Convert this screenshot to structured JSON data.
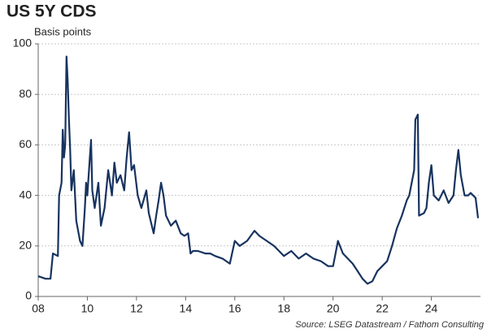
{
  "chart_data": {
    "type": "line",
    "title": "US 5Y CDS",
    "subtitle": "Basis points",
    "source": "Source: LSEG Datastream / Fathom Consulting",
    "xlim": [
      8,
      26
    ],
    "xticks": [
      {
        "value": 8,
        "label": "08"
      },
      {
        "value": 10,
        "label": "10"
      },
      {
        "value": 12,
        "label": "12"
      },
      {
        "value": 14,
        "label": "14"
      },
      {
        "value": 16,
        "label": "16"
      },
      {
        "value": 18,
        "label": "18"
      },
      {
        "value": 20,
        "label": "20"
      },
      {
        "value": 22,
        "label": "22"
      },
      {
        "value": 24,
        "label": "24"
      }
    ],
    "ylim": [
      0,
      100
    ],
    "yticks": [
      0,
      20,
      40,
      60,
      80,
      100
    ],
    "grid": true,
    "x": [
      8.0,
      8.3,
      8.5,
      8.6,
      8.8,
      8.85,
      8.95,
      9.0,
      9.05,
      9.1,
      9.15,
      9.2,
      9.25,
      9.3,
      9.35,
      9.45,
      9.55,
      9.7,
      9.8,
      9.9,
      9.95,
      10.0,
      10.1,
      10.15,
      10.2,
      10.3,
      10.45,
      10.55,
      10.7,
      10.85,
      11.0,
      11.1,
      11.2,
      11.35,
      11.5,
      11.6,
      11.7,
      11.8,
      11.9,
      12.05,
      12.2,
      12.4,
      12.5,
      12.7,
      12.8,
      12.9,
      13.0,
      13.1,
      13.2,
      13.4,
      13.6,
      13.8,
      13.95,
      14.1,
      14.2,
      14.3,
      14.5,
      14.8,
      15.0,
      15.2,
      15.5,
      15.8,
      16.0,
      16.2,
      16.5,
      16.8,
      17.0,
      17.3,
      17.6,
      17.8,
      18.0,
      18.3,
      18.6,
      18.9,
      19.2,
      19.5,
      19.8,
      20.0,
      20.2,
      20.4,
      20.6,
      20.8,
      21.0,
      21.2,
      21.4,
      21.6,
      21.8,
      22.0,
      22.2,
      22.4,
      22.6,
      22.8,
      23.0,
      23.1,
      23.2,
      23.3,
      23.35,
      23.45,
      23.5,
      23.7,
      23.8,
      23.9,
      24.0,
      24.1,
      24.3,
      24.5,
      24.7,
      24.9,
      25.0,
      25.1,
      25.2,
      25.35,
      25.5,
      25.6,
      25.8,
      25.9
    ],
    "series": [
      {
        "name": "US 5Y CDS",
        "color": "#17335f",
        "values": [
          8,
          7,
          7,
          17,
          16,
          40,
          45,
          66,
          55,
          60,
          95,
          85,
          70,
          58,
          42,
          50,
          30,
          22,
          20,
          35,
          45,
          40,
          55,
          62,
          42,
          35,
          45,
          28,
          35,
          50,
          40,
          53,
          45,
          48,
          42,
          55,
          65,
          50,
          52,
          40,
          35,
          42,
          33,
          25,
          32,
          38,
          45,
          40,
          32,
          28,
          30,
          25,
          24,
          25,
          17,
          18,
          18,
          17,
          17,
          16,
          15,
          13,
          22,
          20,
          22,
          26,
          24,
          22,
          20,
          18,
          16,
          18,
          15,
          17,
          15,
          14,
          12,
          12,
          22,
          17,
          15,
          13,
          10,
          7,
          5,
          6,
          10,
          12,
          14,
          20,
          27,
          32,
          38,
          40,
          45,
          50,
          70,
          72,
          32,
          33,
          35,
          45,
          52,
          40,
          38,
          42,
          37,
          40,
          50,
          58,
          48,
          40,
          40,
          41,
          39,
          31
        ]
      }
    ]
  }
}
